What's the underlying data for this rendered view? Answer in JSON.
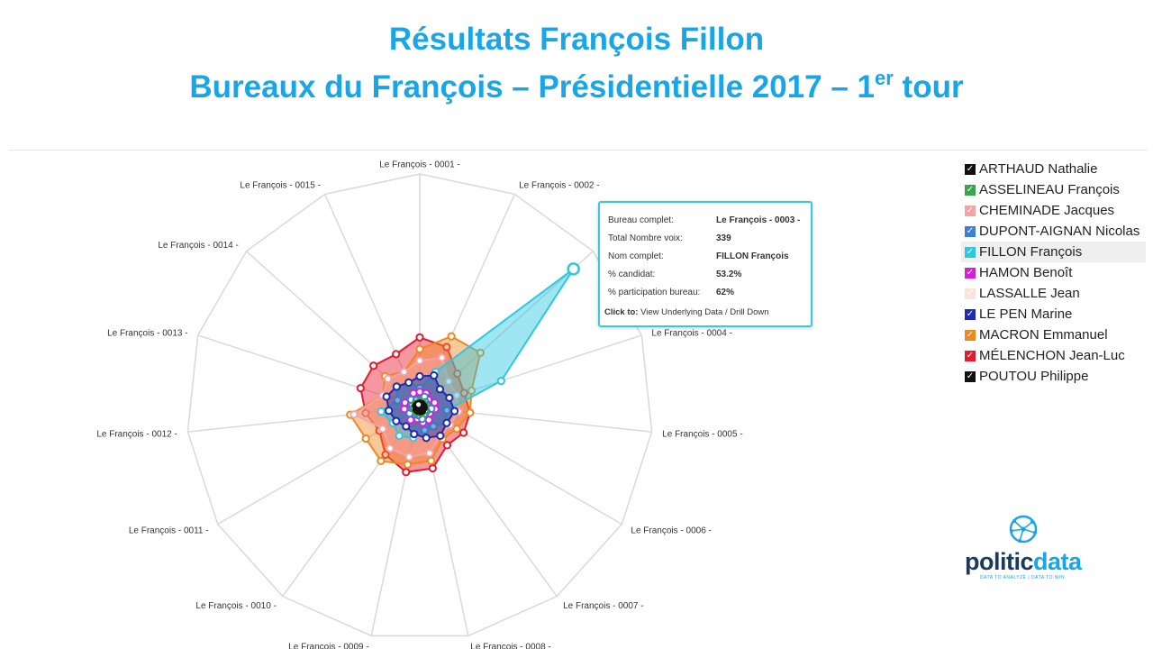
{
  "page": {
    "title_line1": "Résultats François Fillon",
    "title_line2": "Bureaux du François – Présidentielle 2017 – 1",
    "title_line2_sup": "er",
    "title_line2_tail": " tour"
  },
  "chart_data": {
    "type": "radar",
    "axes": [
      "Le François - 0001 -",
      "Le François - 0002 -",
      "Le François - 0003 -",
      "Le François - 0004 -",
      "Le François - 0005 -",
      "Le François - 0006 -",
      "Le François - 0007 -",
      "Le François - 0008 -",
      "Le François - 0009 -",
      "Le François - 0010 -",
      "Le François - 0011 -",
      "Le François - 0012 -",
      "Le François - 0013 -",
      "Le François - 0014 -",
      "Le François - 0015 -"
    ],
    "rmax": 60,
    "grid": true,
    "legend_position": "right",
    "series": [
      {
        "name": "MÉLENCHON Jean-Luc",
        "color": "#e8192c",
        "values": [
          18,
          17,
          13,
          12,
          13,
          13,
          12,
          16,
          17,
          15,
          12,
          14,
          16,
          16,
          15
        ]
      },
      {
        "name": "MACRON Emmanuel",
        "color": "#f0871e",
        "values": [
          15,
          20,
          21,
          14,
          13,
          11,
          10,
          14,
          15,
          17,
          16,
          18,
          10,
          12,
          10
        ]
      },
      {
        "name": "CHEMINADE Jacques",
        "color": "#f4a3a8",
        "values": [
          12,
          14,
          10,
          10,
          10,
          9,
          9,
          12,
          13,
          13,
          11,
          17,
          10,
          11,
          10
        ]
      },
      {
        "name": "FILLON François",
        "color": "#2cc7e2",
        "values": [
          5,
          10,
          53.2,
          22,
          7,
          8,
          6,
          6,
          8,
          9,
          8,
          10,
          6,
          8,
          7
        ]
      },
      {
        "name": "LE PEN Marine",
        "color": "#1f2bb0",
        "values": [
          8,
          9,
          7,
          8,
          9,
          8,
          9,
          8,
          7,
          6,
          7,
          8,
          9,
          8,
          7
        ]
      },
      {
        "name": "HAMON Benoît",
        "color": "#d81ed8",
        "values": [
          4,
          4,
          3,
          4,
          4,
          3,
          4,
          4,
          3,
          4,
          3,
          4,
          4,
          3,
          4
        ]
      },
      {
        "name": "DUPONT-AIGNAN Nicolas",
        "color": "#3d7fd6",
        "values": [
          2,
          3,
          2,
          2,
          3,
          2,
          2,
          3,
          2,
          2,
          3,
          2,
          2,
          3,
          2
        ]
      },
      {
        "name": "ASSELINEAU François",
        "color": "#3aa54a",
        "values": [
          1.5,
          1.5,
          1,
          1.5,
          1,
          1.5,
          1,
          1.5,
          1,
          1.5,
          1,
          1.5,
          1,
          1.5,
          1
        ]
      },
      {
        "name": "ARTHAUD Nathalie",
        "color": "#111111",
        "values": [
          1,
          1,
          0.8,
          1,
          1,
          0.8,
          1,
          1,
          0.8,
          1,
          1,
          0.8,
          1,
          1,
          0.8
        ]
      }
    ]
  },
  "legend": [
    {
      "name": "ARTHAUD Nathalie",
      "color": "#111111"
    },
    {
      "name": "ASSELINEAU François",
      "color": "#3aa54a"
    },
    {
      "name": "CHEMINADE Jacques",
      "color": "#f4a3a8"
    },
    {
      "name": "DUPONT-AIGNAN Nicolas",
      "color": "#3d7fd6"
    },
    {
      "name": "FILLON François",
      "color": "#2cc7e2"
    },
    {
      "name": "HAMON Benoît",
      "color": "#d81ed8"
    },
    {
      "name": "LASSALLE Jean",
      "color": "#fbe4dc"
    },
    {
      "name": "LE PEN Marine",
      "color": "#1f2bb0"
    },
    {
      "name": "MACRON Emmanuel",
      "color": "#f0871e"
    },
    {
      "name": "MÉLENCHON Jean-Luc",
      "color": "#e8192c"
    },
    {
      "name": "POUTOU Philippe",
      "color": "#111111"
    }
  ],
  "tooltip": {
    "rows": [
      {
        "label": "Bureau complet:",
        "value": "Le François - 0003 -"
      },
      {
        "label": "Total Nombre voix:",
        "value": "339"
      },
      {
        "label": "Nom complet:",
        "value": "FILLON François"
      },
      {
        "label": "% candidat:",
        "value": "53.2%"
      },
      {
        "label": "% participation bureau:",
        "value": "62%"
      }
    ],
    "link_prefix": "Click to:",
    "link_text": " View Underlying Data / Drill Down"
  },
  "logo": {
    "name_part1": "politic",
    "name_part2": "data",
    "tagline": "DATA TO ANALYZE | DATA TO WIN"
  }
}
